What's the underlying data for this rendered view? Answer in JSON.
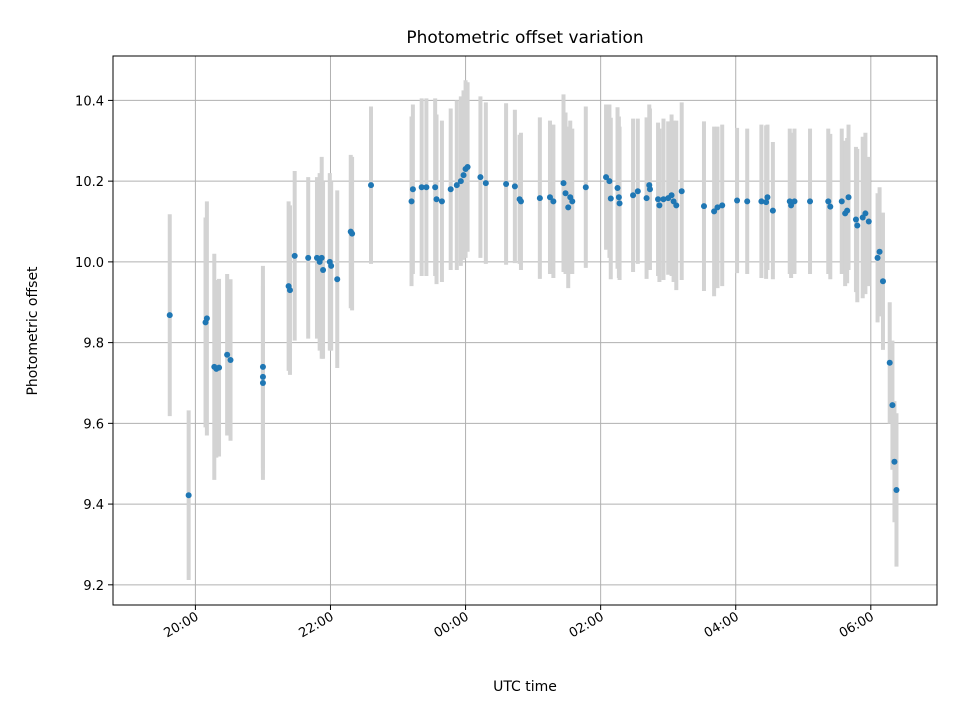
{
  "chart_data": {
    "type": "scatter",
    "title": "Photometric offset variation",
    "xlabel": "UTC time",
    "ylabel": "Photometric offset",
    "x_unit": "hours (UTC, continuing past 24:00)",
    "xlim": [
      18.78,
      30.98
    ],
    "ylim": [
      9.15,
      10.51
    ],
    "x_ticks": [
      {
        "value": 20,
        "label": "20:00"
      },
      {
        "value": 22,
        "label": "22:00"
      },
      {
        "value": 24,
        "label": "00:00"
      },
      {
        "value": 26,
        "label": "02:00"
      },
      {
        "value": 28,
        "label": "04:00"
      },
      {
        "value": 30,
        "label": "06:00"
      }
    ],
    "y_ticks": [
      {
        "value": 9.2,
        "label": "9.2"
      },
      {
        "value": 9.4,
        "label": "9.4"
      },
      {
        "value": 9.6,
        "label": "9.6"
      },
      {
        "value": 9.8,
        "label": "9.8"
      },
      {
        "value": 10.0,
        "label": "10.0"
      },
      {
        "value": 10.2,
        "label": "10.2"
      },
      {
        "value": 10.4,
        "label": "10.4"
      }
    ],
    "grid": true,
    "colors": {
      "point": "#1f77b4",
      "errorbar": "#d3d3d3",
      "grid": "#b0b0b0"
    },
    "points": [
      [
        19.62,
        9.868,
        0.25
      ],
      [
        19.9,
        9.422,
        0.21
      ],
      [
        20.15,
        9.85,
        0.26
      ],
      [
        20.17,
        9.86,
        0.29
      ],
      [
        20.28,
        9.74,
        0.28
      ],
      [
        20.31,
        9.735,
        0.22
      ],
      [
        20.35,
        9.738,
        0.22
      ],
      [
        20.47,
        9.77,
        0.2
      ],
      [
        20.52,
        9.757,
        0.2
      ],
      [
        21.0,
        9.74,
        0.25
      ],
      [
        21.0,
        9.715,
        0.24
      ],
      [
        21.0,
        9.7,
        0.24
      ],
      [
        21.38,
        9.94,
        0.21
      ],
      [
        21.4,
        9.93,
        0.21
      ],
      [
        21.47,
        10.015,
        0.21
      ],
      [
        21.67,
        10.01,
        0.2
      ],
      [
        21.8,
        10.01,
        0.2
      ],
      [
        21.84,
        10.0,
        0.22
      ],
      [
        21.87,
        10.01,
        0.25
      ],
      [
        21.89,
        9.98,
        0.22
      ],
      [
        21.99,
        10.0,
        0.22
      ],
      [
        22.01,
        9.99,
        0.21
      ],
      [
        22.1,
        9.957,
        0.22
      ],
      [
        22.3,
        10.075,
        0.19
      ],
      [
        22.32,
        10.07,
        0.19
      ],
      [
        22.6,
        10.19,
        0.195
      ],
      [
        23.2,
        10.15,
        0.21
      ],
      [
        23.22,
        10.18,
        0.21
      ],
      [
        23.35,
        10.185,
        0.22
      ],
      [
        23.42,
        10.185,
        0.22
      ],
      [
        23.55,
        10.185,
        0.22
      ],
      [
        23.57,
        10.155,
        0.21
      ],
      [
        23.65,
        10.15,
        0.2
      ],
      [
        23.78,
        10.18,
        0.2
      ],
      [
        23.87,
        10.19,
        0.21
      ],
      [
        23.93,
        10.2,
        0.21
      ],
      [
        23.97,
        10.215,
        0.21
      ],
      [
        24.0,
        10.23,
        0.22
      ],
      [
        24.03,
        10.235,
        0.21
      ],
      [
        24.22,
        10.21,
        0.2
      ],
      [
        24.3,
        10.195,
        0.2
      ],
      [
        24.6,
        10.193,
        0.2
      ],
      [
        24.73,
        10.187,
        0.19
      ],
      [
        24.8,
        10.155,
        0.16
      ],
      [
        24.82,
        10.15,
        0.17
      ],
      [
        25.1,
        10.158,
        0.2
      ],
      [
        25.25,
        10.16,
        0.19
      ],
      [
        25.3,
        10.15,
        0.19
      ],
      [
        25.45,
        10.195,
        0.22
      ],
      [
        25.48,
        10.17,
        0.2
      ],
      [
        25.52,
        10.135,
        0.2
      ],
      [
        25.55,
        10.16,
        0.19
      ],
      [
        25.58,
        10.15,
        0.18
      ],
      [
        25.78,
        10.185,
        0.2
      ],
      [
        26.08,
        10.21,
        0.18
      ],
      [
        26.13,
        10.2,
        0.19
      ],
      [
        26.15,
        10.157,
        0.2
      ],
      [
        26.25,
        10.183,
        0.2
      ],
      [
        26.27,
        10.16,
        0.2
      ],
      [
        26.28,
        10.145,
        0.19
      ],
      [
        26.48,
        10.165,
        0.19
      ],
      [
        26.55,
        10.175,
        0.18
      ],
      [
        26.68,
        10.158,
        0.2
      ],
      [
        26.72,
        10.19,
        0.2
      ],
      [
        26.73,
        10.18,
        0.2
      ],
      [
        26.85,
        10.155,
        0.19
      ],
      [
        26.87,
        10.14,
        0.19
      ],
      [
        26.93,
        10.155,
        0.2
      ],
      [
        27.0,
        10.158,
        0.19
      ],
      [
        27.05,
        10.165,
        0.2
      ],
      [
        27.08,
        10.15,
        0.2
      ],
      [
        27.12,
        10.14,
        0.21
      ],
      [
        27.2,
        10.175,
        0.22
      ],
      [
        27.53,
        10.138,
        0.21
      ],
      [
        27.68,
        10.125,
        0.21
      ],
      [
        27.73,
        10.135,
        0.2
      ],
      [
        27.8,
        10.14,
        0.2
      ],
      [
        28.02,
        10.152,
        0.18
      ],
      [
        28.17,
        10.15,
        0.18
      ],
      [
        28.38,
        10.15,
        0.19
      ],
      [
        28.45,
        10.148,
        0.19
      ],
      [
        28.47,
        10.16,
        0.18
      ],
      [
        28.55,
        10.127,
        0.17
      ],
      [
        28.8,
        10.15,
        0.18
      ],
      [
        28.82,
        10.14,
        0.18
      ],
      [
        28.87,
        10.15,
        0.18
      ],
      [
        29.1,
        10.15,
        0.18
      ],
      [
        29.37,
        10.15,
        0.18
      ],
      [
        29.4,
        10.137,
        0.18
      ],
      [
        29.57,
        10.15,
        0.18
      ],
      [
        29.62,
        10.12,
        0.18
      ],
      [
        29.65,
        10.127,
        0.18
      ],
      [
        29.67,
        10.16,
        0.18
      ],
      [
        29.78,
        10.105,
        0.18
      ],
      [
        29.8,
        10.09,
        0.19
      ],
      [
        29.88,
        10.11,
        0.2
      ],
      [
        29.92,
        10.12,
        0.2
      ],
      [
        29.97,
        10.1,
        0.16
      ],
      [
        30.1,
        10.01,
        0.16
      ],
      [
        30.13,
        10.025,
        0.16
      ],
      [
        30.18,
        9.952,
        0.17
      ],
      [
        30.28,
        9.75,
        0.15
      ],
      [
        30.32,
        9.645,
        0.16
      ],
      [
        30.35,
        9.505,
        0.15
      ],
      [
        30.38,
        9.435,
        0.19
      ]
    ]
  }
}
